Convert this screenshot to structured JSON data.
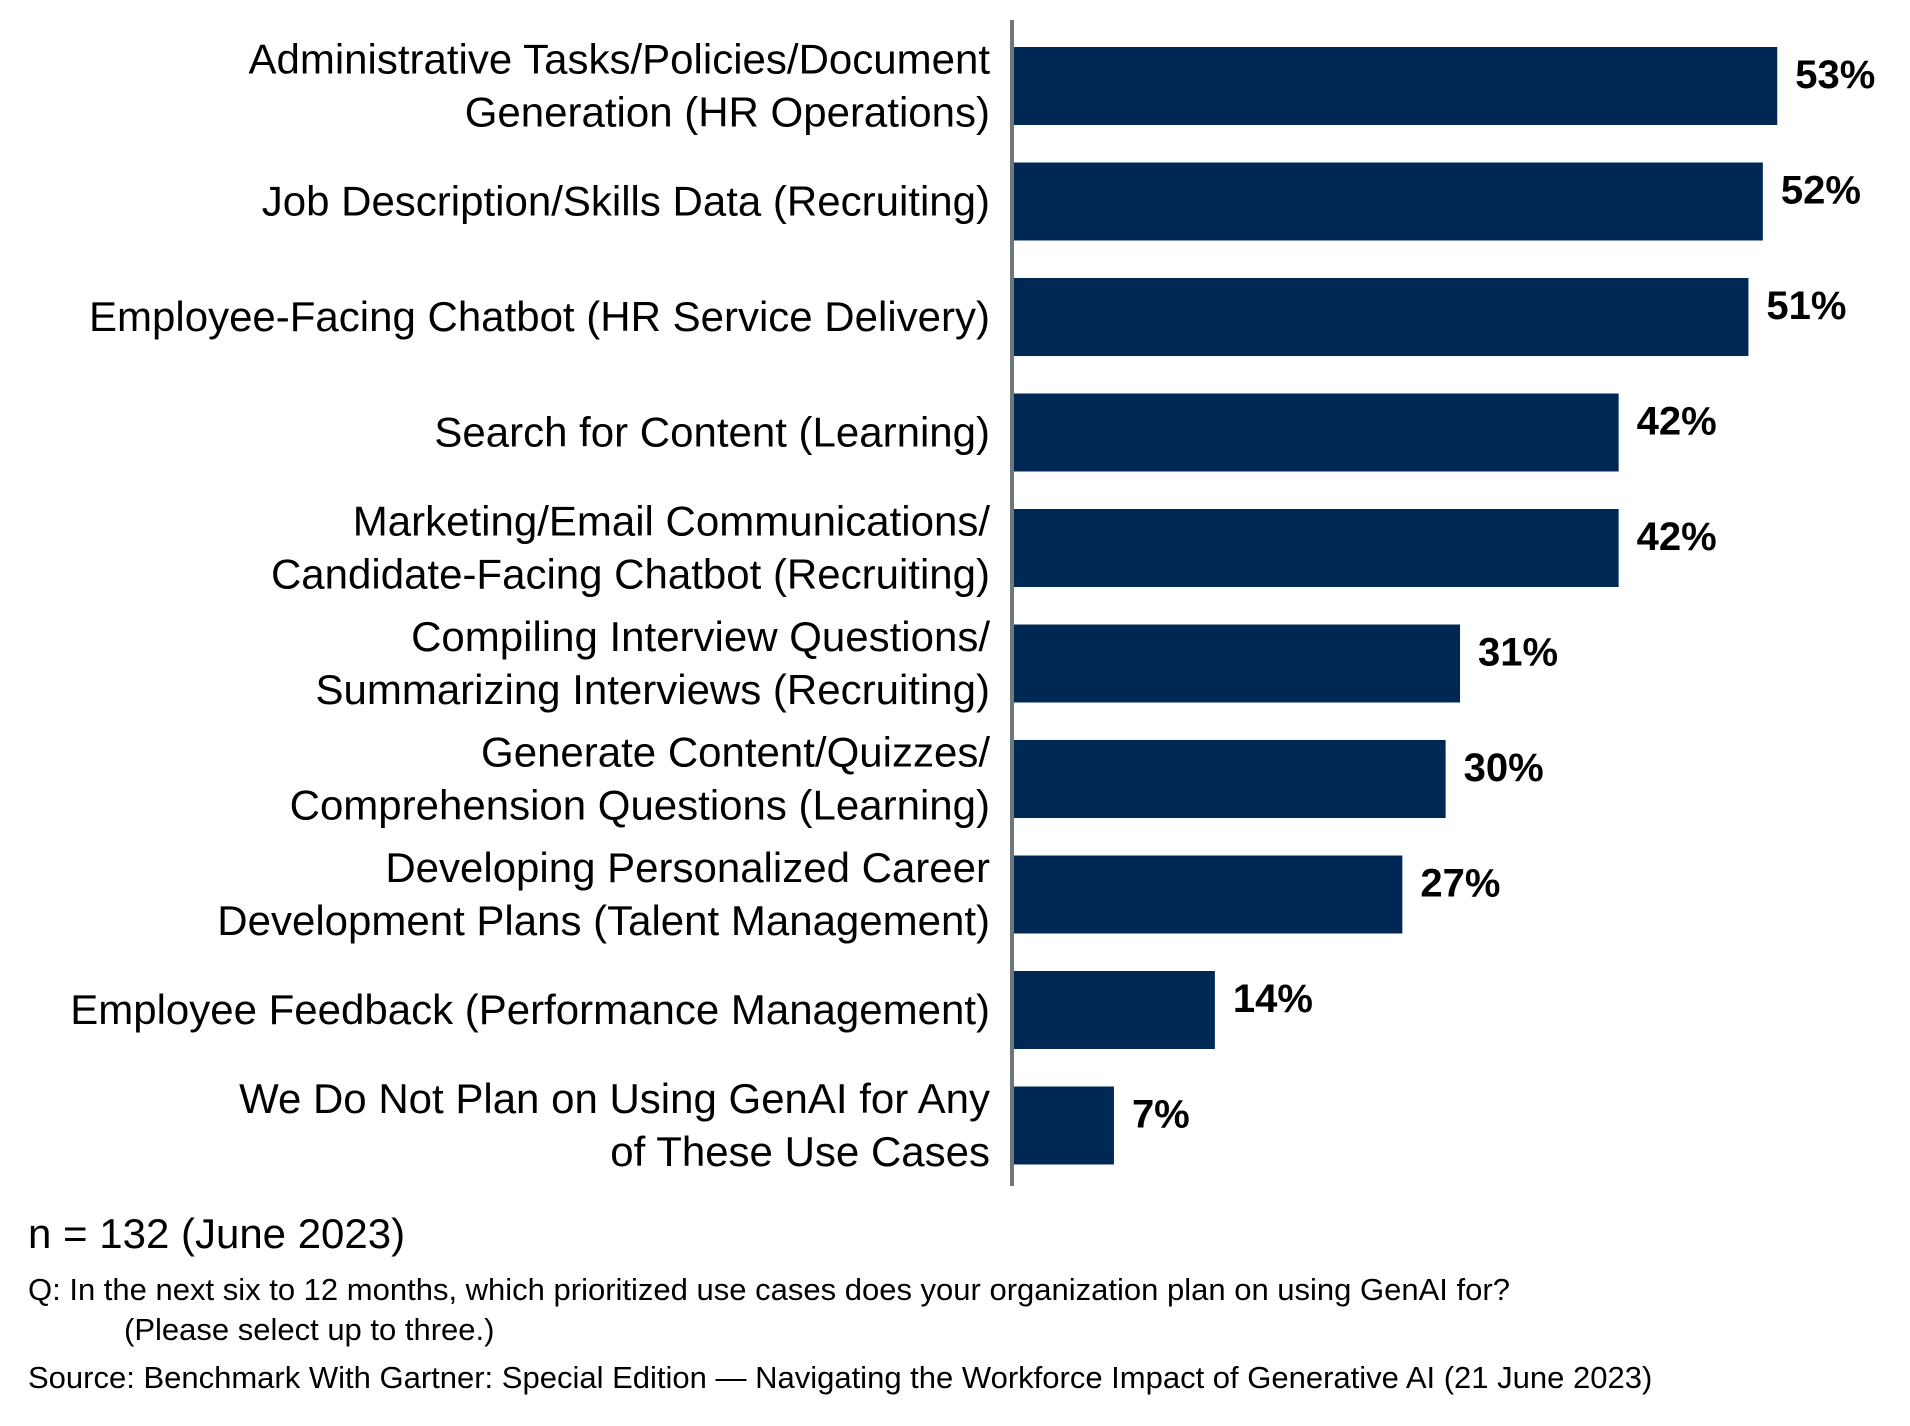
{
  "chart_data": {
    "type": "bar",
    "orientation": "horizontal",
    "title": "",
    "xlabel": "",
    "ylabel": "",
    "categories": [
      [
        "Administrative Tasks/Policies/Document",
        "Generation (HR Operations)"
      ],
      [
        "Job Description/Skills Data (Recruiting)"
      ],
      [
        "Employee-Facing Chatbot (HR Service Delivery)"
      ],
      [
        "Search for Content (Learning)"
      ],
      [
        "Marketing/Email Communications/",
        "Candidate-Facing Chatbot (Recruiting)"
      ],
      [
        "Compiling Interview Questions/",
        "Summarizing Interviews (Recruiting)"
      ],
      [
        "Generate Content/Quizzes/",
        "Comprehension Questions (Learning)"
      ],
      [
        "Developing Personalized Career",
        "Development Plans (Talent Management)"
      ],
      [
        "Employee Feedback (Performance Management)"
      ],
      [
        "We Do Not Plan on Using GenAI for Any",
        "of These Use Cases"
      ]
    ],
    "values": [
      53,
      52,
      51,
      42,
      42,
      31,
      30,
      27,
      14,
      7
    ],
    "value_labels": [
      "53%",
      "52%",
      "51%",
      "42%",
      "42%",
      "31%",
      "30%",
      "27%",
      "14%",
      "7%"
    ],
    "unit": "%",
    "xlim": [
      0,
      60
    ],
    "grid": false,
    "legend": "none",
    "bar_color": "#002855",
    "axis_color": "#6e7878"
  },
  "footer": {
    "n_note": "n = 132 (June 2023)",
    "question_line1": "Q: In the next six to 12 months, which prioritized use cases does your organization plan on using GenAI for?",
    "question_line2": "(Please select up to three.)",
    "source": "Source: Benchmark With Gartner: Special Edition — Navigating the Workforce Impact of Generative AI (21 June 2023)"
  }
}
